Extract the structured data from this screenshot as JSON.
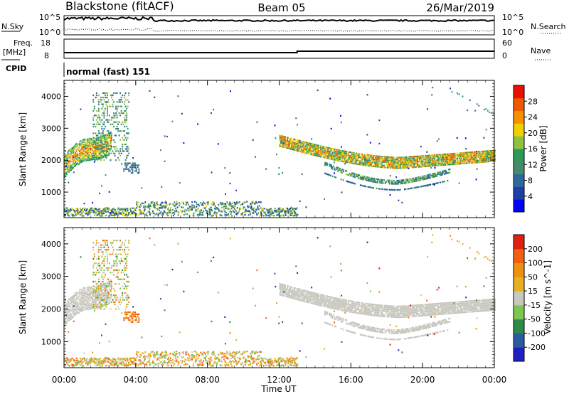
{
  "header": {
    "station": "Blackstone (fitACF)",
    "beam": "Beam 05",
    "date": "26/Mar/2019"
  },
  "strips": {
    "nsky_label": "N.Sky",
    "nsky_ticks": [
      "10^5",
      "10^0"
    ],
    "nsearch_label": "N.Search",
    "nsearch_ticks": [
      "10^5",
      "10^0"
    ],
    "freq_label": "Freq.",
    "freq_unit": "[MHz]",
    "freq_ticks": [
      "18",
      "8"
    ],
    "nave_label": "Nave",
    "nave_ticks": [
      "60",
      "0"
    ],
    "cpid_label": "CPID",
    "cpid_value": "normal (fast) 151"
  },
  "colors": {
    "power_scale": [
      "#0000ff",
      "#1e3fa8",
      "#2b6a9a",
      "#4a8a6c",
      "#2e9a5a",
      "#90c040",
      "#f0d000",
      "#f59000",
      "#ee5a00",
      "#e81000"
    ],
    "velocity_scale": [
      "#2020c0",
      "#2a5aa0",
      "#2e8a4a",
      "#7ac850",
      "#c8c8c0",
      "#e8b020",
      "#f09010",
      "#f06010",
      "#e02010"
    ]
  },
  "chart_data": [
    {
      "type": "heatmap",
      "name": "power",
      "ylabel": "Slant Range [km]",
      "yticks": [
        "1000",
        "2000",
        "3000",
        "4000"
      ],
      "ylim": [
        200,
        4500
      ],
      "colorbar_label": "Power [dB]",
      "colorbar_ticks": [
        "4",
        "8",
        "12",
        "16",
        "20",
        "24",
        "28"
      ],
      "scale_range": [
        0,
        32
      ]
    },
    {
      "type": "heatmap",
      "name": "velocity",
      "ylabel": "Slant Range [km]",
      "yticks": [
        "1000",
        "2000",
        "3000",
        "4000"
      ],
      "ylim": [
        200,
        4500
      ],
      "colorbar_label": "Velocity [m s^-1]",
      "colorbar_ticks": [
        "200",
        "100",
        "50",
        "15",
        "-15",
        "-50",
        "-100",
        "-200"
      ],
      "scale_range": [
        -250,
        250
      ]
    }
  ],
  "xaxis": {
    "label": "Time UT",
    "ticks": [
      "00:00",
      "04:00",
      "08:00",
      "12:00",
      "16:00",
      "20:00",
      "00:00"
    ]
  }
}
